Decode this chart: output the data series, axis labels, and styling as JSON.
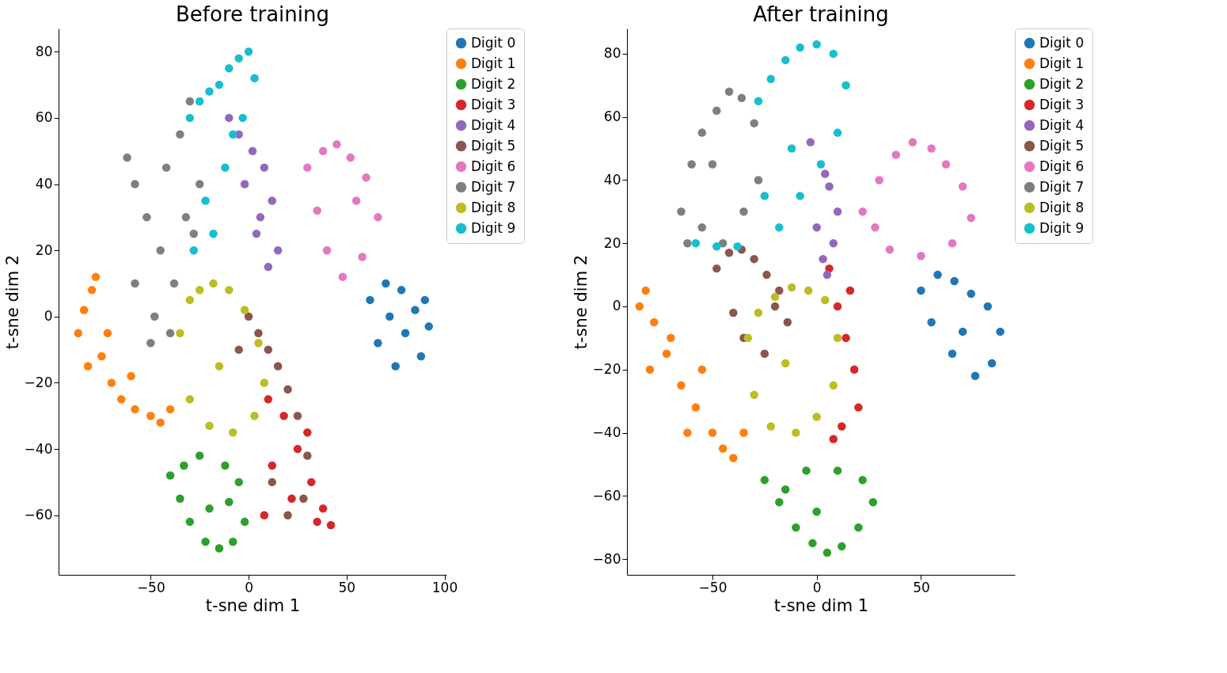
{
  "chart_data": [
    {
      "type": "scatter",
      "title": "Before training",
      "xlabel": "t-sne dim 1",
      "ylabel": "t-sne dim 2",
      "legend": "right",
      "marker": "circle",
      "grid": false,
      "xlim": [
        -97,
        101
      ],
      "ylim": [
        -78,
        87
      ],
      "xticks": [
        {
          "value": -50,
          "label": "−50"
        },
        0,
        50,
        100
      ],
      "yticks": [
        {
          "value": -60,
          "label": "−60"
        },
        {
          "value": -40,
          "label": "−40"
        },
        {
          "value": -20,
          "label": "−20"
        },
        0,
        20,
        40,
        60,
        80
      ],
      "series": [
        {
          "name": "Digit 0",
          "color": "#1f77b4",
          "x": [
            62,
            70,
            78,
            85,
            92,
            88,
            75,
            66,
            80,
            72,
            90
          ],
          "values": [
            5,
            10,
            8,
            2,
            -3,
            -12,
            -15,
            -8,
            -5,
            0,
            5
          ]
        },
        {
          "name": "Digit 1",
          "color": "#ff7f0e",
          "x": [
            -87,
            -84,
            -80,
            -78,
            -75,
            -70,
            -65,
            -58,
            -50,
            -45,
            -40,
            -60,
            -72,
            -82
          ],
          "values": [
            -5,
            2,
            8,
            12,
            -12,
            -20,
            -25,
            -28,
            -30,
            -32,
            -28,
            -18,
            -5,
            -15
          ]
        },
        {
          "name": "Digit 2",
          "color": "#2ca02c",
          "x": [
            -40,
            -35,
            -30,
            -22,
            -15,
            -8,
            -2,
            -5,
            -12,
            -25,
            -33,
            -20,
            -10
          ],
          "values": [
            -48,
            -55,
            -62,
            -68,
            -70,
            -68,
            -62,
            -50,
            -45,
            -42,
            -45,
            -58,
            -56
          ]
        },
        {
          "name": "Digit 3",
          "color": "#d62728",
          "x": [
            10,
            18,
            25,
            32,
            38,
            42,
            35,
            22,
            12,
            30,
            8
          ],
          "values": [
            -25,
            -30,
            -40,
            -50,
            -58,
            -63,
            -62,
            -55,
            -45,
            -35,
            -60
          ]
        },
        {
          "name": "Digit 4",
          "color": "#9467bd",
          "x": [
            -10,
            -5,
            2,
            8,
            12,
            15,
            10,
            4,
            -2,
            6
          ],
          "values": [
            60,
            55,
            50,
            45,
            35,
            20,
            15,
            25,
            40,
            30
          ]
        },
        {
          "name": "Digit 5",
          "color": "#8c564b",
          "x": [
            0,
            5,
            10,
            15,
            20,
            25,
            30,
            -5,
            12,
            28,
            20
          ],
          "values": [
            0,
            -5,
            -10,
            -15,
            -22,
            -30,
            -42,
            -10,
            -50,
            -55,
            -60
          ]
        },
        {
          "name": "Digit 6",
          "color": "#e377c2",
          "x": [
            30,
            38,
            45,
            52,
            60,
            66,
            58,
            48,
            40,
            35,
            55
          ],
          "values": [
            45,
            50,
            52,
            48,
            42,
            30,
            18,
            12,
            20,
            32,
            35
          ]
        },
        {
          "name": "Digit 7",
          "color": "#7f7f7f",
          "x": [
            -62,
            -58,
            -52,
            -45,
            -38,
            -35,
            -30,
            -25,
            -28,
            -40,
            -50,
            -58,
            -48,
            -42,
            -32
          ],
          "values": [
            48,
            40,
            30,
            20,
            10,
            55,
            65,
            40,
            25,
            -5,
            -8,
            10,
            0,
            45,
            30
          ]
        },
        {
          "name": "Digit 8",
          "color": "#bcbd22",
          "x": [
            -35,
            -30,
            -25,
            -18,
            -10,
            -2,
            5,
            8,
            3,
            -8,
            -20,
            -30,
            -15
          ],
          "values": [
            -5,
            5,
            8,
            10,
            8,
            2,
            -8,
            -20,
            -30,
            -35,
            -33,
            -25,
            -15
          ]
        },
        {
          "name": "Digit 9",
          "color": "#17becf",
          "x": [
            -30,
            -25,
            -20,
            -15,
            -10,
            -5,
            0,
            3,
            -3,
            -12,
            -22,
            -28,
            -8,
            -18
          ],
          "values": [
            60,
            65,
            68,
            70,
            75,
            78,
            80,
            72,
            60,
            45,
            35,
            20,
            55,
            25
          ]
        }
      ]
    },
    {
      "type": "scatter",
      "title": "After training",
      "xlabel": "t-sne dim 1",
      "ylabel": "t-sne dim 2",
      "legend": "right",
      "marker": "circle",
      "grid": false,
      "xlim": [
        -91,
        95
      ],
      "ylim": [
        -85,
        88
      ],
      "xticks": [
        {
          "value": -50,
          "label": "−50"
        },
        0,
        50
      ],
      "yticks": [
        {
          "value": -80,
          "label": "−80"
        },
        {
          "value": -60,
          "label": "−60"
        },
        {
          "value": -40,
          "label": "−40"
        },
        {
          "value": -20,
          "label": "−20"
        },
        0,
        20,
        40,
        60,
        80
      ],
      "series": [
        {
          "name": "Digit 0",
          "color": "#1f77b4",
          "x": [
            50,
            58,
            66,
            74,
            82,
            88,
            84,
            76,
            65,
            55,
            70
          ],
          "values": [
            5,
            10,
            8,
            4,
            0,
            -8,
            -18,
            -22,
            -15,
            -5,
            -8
          ]
        },
        {
          "name": "Digit 1",
          "color": "#ff7f0e",
          "x": [
            -85,
            -82,
            -78,
            -72,
            -65,
            -58,
            -50,
            -45,
            -40,
            -35,
            -55,
            -70,
            -80,
            -62
          ],
          "values": [
            0,
            5,
            -5,
            -15,
            -25,
            -32,
            -40,
            -45,
            -48,
            -40,
            -20,
            -10,
            -20,
            -40
          ]
        },
        {
          "name": "Digit 2",
          "color": "#2ca02c",
          "x": [
            -25,
            -18,
            -10,
            -2,
            5,
            12,
            20,
            27,
            22,
            10,
            -5,
            -15,
            0
          ],
          "values": [
            -55,
            -62,
            -70,
            -75,
            -78,
            -76,
            -70,
            -62,
            -55,
            -52,
            -52,
            -58,
            -65
          ]
        },
        {
          "name": "Digit 3",
          "color": "#d62728",
          "x": [
            6,
            10,
            14,
            18,
            20,
            12,
            8,
            16
          ],
          "values": [
            12,
            0,
            -10,
            -20,
            -32,
            -38,
            -42,
            5
          ]
        },
        {
          "name": "Digit 4",
          "color": "#9467bd",
          "x": [
            -3,
            4,
            6,
            10,
            8,
            3,
            0,
            5
          ],
          "values": [
            52,
            42,
            38,
            30,
            20,
            15,
            25,
            10
          ]
        },
        {
          "name": "Digit 5",
          "color": "#8c564b",
          "x": [
            -48,
            -42,
            -36,
            -30,
            -24,
            -18,
            -14,
            -35,
            -25,
            -40,
            -20
          ],
          "values": [
            12,
            17,
            18,
            15,
            10,
            5,
            -5,
            -10,
            -15,
            -2,
            0
          ]
        },
        {
          "name": "Digit 6",
          "color": "#e377c2",
          "x": [
            22,
            30,
            38,
            46,
            55,
            62,
            70,
            74,
            65,
            50,
            35,
            28
          ],
          "values": [
            30,
            40,
            48,
            52,
            50,
            45,
            38,
            28,
            20,
            16,
            18,
            25
          ]
        },
        {
          "name": "Digit 7",
          "color": "#7f7f7f",
          "x": [
            -65,
            -60,
            -55,
            -48,
            -42,
            -36,
            -30,
            -28,
            -35,
            -45,
            -55,
            -62,
            -50
          ],
          "values": [
            30,
            45,
            55,
            62,
            68,
            66,
            58,
            40,
            30,
            20,
            25,
            20,
            45
          ]
        },
        {
          "name": "Digit 8",
          "color": "#bcbd22",
          "x": [
            -33,
            -28,
            -20,
            -12,
            -4,
            4,
            10,
            8,
            0,
            -10,
            -22,
            -30,
            -15
          ],
          "values": [
            -10,
            -2,
            3,
            6,
            5,
            2,
            -10,
            -25,
            -35,
            -40,
            -38,
            -28,
            -18
          ]
        },
        {
          "name": "Digit 9",
          "color": "#17becf",
          "x": [
            -28,
            -22,
            -15,
            -8,
            0,
            8,
            14,
            10,
            2,
            -8,
            -18,
            -25,
            -58,
            -48,
            -38,
            -12
          ],
          "values": [
            65,
            72,
            78,
            82,
            83,
            80,
            70,
            55,
            45,
            35,
            25,
            35,
            20,
            19,
            19,
            50
          ]
        }
      ]
    }
  ]
}
